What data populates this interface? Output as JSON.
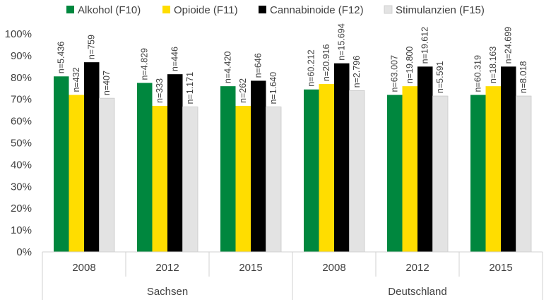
{
  "chart_data": {
    "type": "bar",
    "title": "",
    "xlabel": "",
    "ylabel": "",
    "ylim": [
      0,
      100
    ],
    "y_ticks": [
      "0%",
      "10%",
      "20%",
      "30%",
      "40%",
      "50%",
      "60%",
      "70%",
      "80%",
      "90%",
      "100%"
    ],
    "grid": false,
    "legend_position": "top",
    "groups": [
      {
        "label": "Sachsen",
        "categories": [
          "2008",
          "2012",
          "2015"
        ]
      },
      {
        "label": "Deutschland",
        "categories": [
          "2008",
          "2012",
          "2015"
        ]
      }
    ],
    "categories": [
      "2008",
      "2012",
      "2015",
      "2008",
      "2012",
      "2015"
    ],
    "series": [
      {
        "name": "Alkohol (F10)",
        "color": "#00873e",
        "values": [
          80.5,
          77.5,
          76.0,
          74.5,
          72.0,
          72.0
        ],
        "labels": [
          "n=5.436",
          "n=4.829",
          "n=4.420",
          "n=60.212",
          "n=63.007",
          "n=60.319"
        ]
      },
      {
        "name": "Opioide (F11)",
        "color": "#ffdd00",
        "values": [
          72.0,
          67.0,
          67.0,
          77.0,
          76.0,
          76.0
        ],
        "labels": [
          "n=432",
          "n=333",
          "n=262",
          "n=20.916",
          "n=19.800",
          "n=18.163"
        ]
      },
      {
        "name": "Cannabinoide (F12)",
        "color": "#000000",
        "values": [
          87.0,
          81.5,
          78.5,
          86.5,
          85.0,
          85.0
        ],
        "labels": [
          "n=759",
          "n=446",
          "n=646",
          "n=15.694",
          "n=19.612",
          "n=24.699"
        ]
      },
      {
        "name": "Stimulanzien (F15)",
        "color": "#e3e3e3",
        "values": [
          70.5,
          66.5,
          66.5,
          74.0,
          71.5,
          71.5
        ],
        "labels": [
          "n=407",
          "n=1.171",
          "n=1.640",
          "n=2.796",
          "n=5.591",
          "n=8.018"
        ]
      }
    ]
  }
}
